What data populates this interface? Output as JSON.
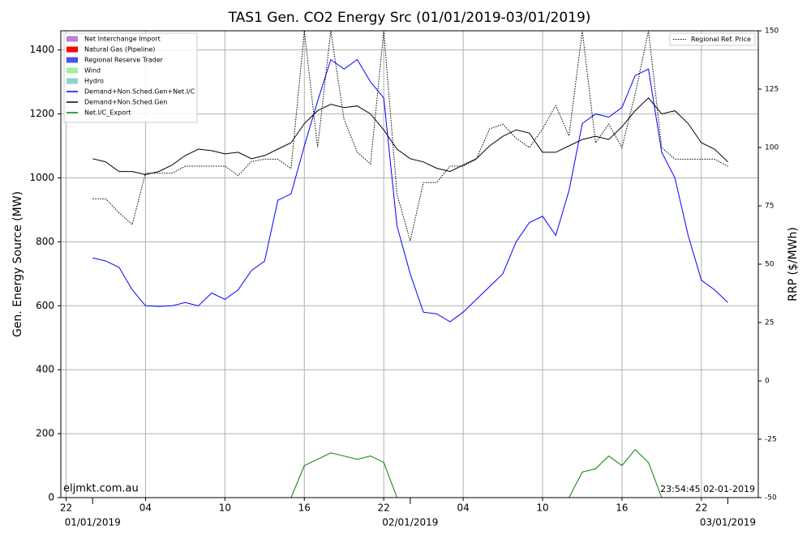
{
  "chart_data": {
    "type": "line",
    "title": "TAS1 Gen. CO2 Energy Src (01/01/2019-03/01/2019)",
    "ylabel": "Gen. Energy Source (MW)",
    "y2label": "RRP ($/MWh)",
    "watermark": "eljmkt.com.au",
    "timestamp": "23:54:45 02-01-2019",
    "x": [
      0,
      1,
      2,
      3,
      4,
      5,
      6,
      7,
      8,
      9,
      10,
      11,
      12,
      13,
      14,
      15,
      16,
      17,
      18,
      19,
      20,
      21,
      22,
      23,
      24,
      25,
      26,
      27,
      28,
      29,
      30,
      31,
      32,
      33,
      34,
      35,
      36,
      37,
      38,
      39,
      40,
      41,
      42,
      43,
      44,
      45,
      46,
      47,
      48
    ],
    "xlim": [
      -2.4,
      50.3
    ],
    "xticks": [
      {
        "value": -2,
        "label": "22"
      },
      {
        "value": 4,
        "label": "04"
      },
      10,
      16,
      22,
      {
        "value": 28,
        "label": "04"
      },
      {
        "value": 34,
        "label": "10"
      },
      {
        "value": 40,
        "label": "16"
      },
      {
        "value": 46,
        "label": "22"
      }
    ],
    "date_ticks": [
      {
        "value": 0,
        "label": "01/01/2019"
      },
      {
        "value": 24,
        "label": "02/01/2019"
      },
      {
        "value": 48,
        "label": "03/01/2019"
      }
    ],
    "ylim": [
      0,
      1460
    ],
    "yticks": [
      0,
      200,
      400,
      600,
      800,
      1000,
      1200,
      1400
    ],
    "y2lim": [
      -50,
      150
    ],
    "y2ticks": [
      -50,
      -25,
      0,
      25,
      50,
      75,
      100,
      125,
      150
    ],
    "grid": true,
    "legend": "upper left",
    "legend2": "upper right",
    "area_series": [
      {
        "name": "Net Interchange Import",
        "color": "#bf80d0"
      },
      {
        "name": "Natural Gas (Pipeline)",
        "color": "#ff0000"
      },
      {
        "name": "Regional Reserve Trader",
        "color": "#5050f0"
      },
      {
        "name": "Wind",
        "color": "#a0f0a0"
      },
      {
        "name": "Hydro",
        "color": "#90d0d0"
      }
    ],
    "series": [
      {
        "name": "Demand+Non.Sched.Gen+Net.I/C",
        "color": "#0000ff",
        "values": [
          750,
          740,
          720,
          650,
          600,
          598,
          600,
          610,
          600,
          640,
          620,
          650,
          710,
          740,
          930,
          950,
          1100,
          1240,
          1370,
          1340,
          1370,
          1300,
          1250,
          850,
          700,
          580,
          575,
          550,
          580,
          620,
          660,
          700,
          800,
          860,
          880,
          820,
          960,
          1170,
          1200,
          1190,
          1220,
          1320,
          1340,
          1080,
          1000,
          820,
          680,
          650,
          610
        ]
      },
      {
        "name": "Demand+Non.Sched.Gen",
        "color": "#000000",
        "values": [
          1060,
          1050,
          1020,
          1020,
          1010,
          1020,
          1040,
          1070,
          1090,
          1085,
          1075,
          1080,
          1060,
          1070,
          1090,
          1110,
          1170,
          1210,
          1230,
          1220,
          1225,
          1200,
          1150,
          1090,
          1060,
          1050,
          1030,
          1020,
          1040,
          1060,
          1100,
          1130,
          1150,
          1140,
          1080,
          1080,
          1100,
          1120,
          1130,
          1120,
          1160,
          1210,
          1250,
          1200,
          1210,
          1170,
          1110,
          1090,
          1050
        ]
      },
      {
        "name": "Net.I/C_Export",
        "color": "#008000",
        "values": [
          0,
          0,
          0,
          0,
          0,
          0,
          0,
          0,
          0,
          0,
          0,
          0,
          0,
          0,
          0,
          0,
          100,
          120,
          140,
          130,
          120,
          130,
          110,
          0,
          0,
          0,
          0,
          0,
          0,
          0,
          0,
          0,
          0,
          0,
          0,
          0,
          0,
          80,
          90,
          130,
          100,
          150,
          110,
          0,
          0,
          0,
          0,
          0,
          0
        ]
      },
      {
        "name": "Regional Ref. Price",
        "color": "#000000",
        "axis": "y2",
        "linestyle": "dotted",
        "values": [
          78,
          78,
          72,
          67,
          89,
          89,
          89,
          92,
          92,
          92,
          92,
          88,
          94,
          95,
          95,
          91,
          150,
          100,
          150,
          112,
          98,
          93,
          150,
          80,
          60,
          85,
          85,
          92,
          92,
          95,
          108,
          110,
          104,
          100,
          108,
          118,
          105,
          150,
          102,
          110,
          100,
          123,
          150,
          100,
          95,
          95,
          95,
          95,
          92
        ]
      }
    ]
  }
}
